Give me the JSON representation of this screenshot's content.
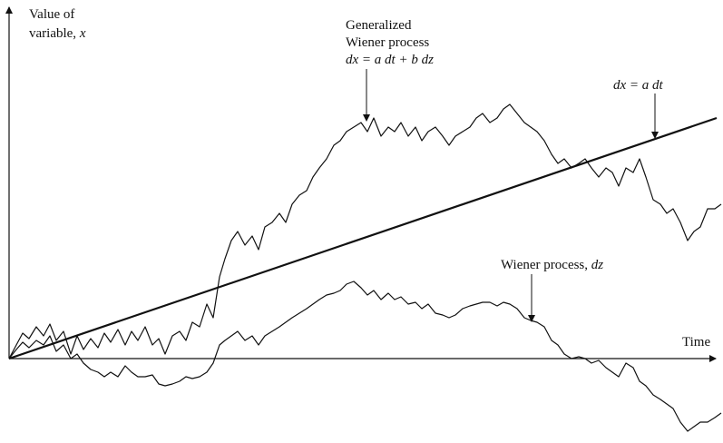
{
  "chart_data": {
    "type": "line",
    "title": "",
    "ylabel_line1": "Value of",
    "ylabel_line2_prefix": "variable, ",
    "ylabel_var": "x",
    "xlabel": "Time",
    "grid": false,
    "annotations": {
      "generalized": {
        "line1": "Generalized",
        "line2": "Wiener process",
        "equation": "dx = a dt + b dz"
      },
      "drift": {
        "equation": "dx = a dt"
      },
      "wiener": {
        "text": "Wiener process, ",
        "var": "dz"
      }
    },
    "series": [
      {
        "key": "drift",
        "style": "thick",
        "points": [
          [
            0,
            0
          ],
          [
            780,
            -265
          ]
        ]
      },
      {
        "key": "generalized",
        "style": "thin",
        "points": [
          [
            0,
            0
          ],
          [
            8,
            -15
          ],
          [
            15,
            -28
          ],
          [
            22,
            -22
          ],
          [
            30,
            -35
          ],
          [
            38,
            -25
          ],
          [
            45,
            -38
          ],
          [
            52,
            -20
          ],
          [
            60,
            -30
          ],
          [
            68,
            -5
          ],
          [
            75,
            -25
          ],
          [
            82,
            -10
          ],
          [
            90,
            -22
          ],
          [
            98,
            -12
          ],
          [
            105,
            -28
          ],
          [
            112,
            -18
          ],
          [
            120,
            -32
          ],
          [
            128,
            -15
          ],
          [
            135,
            -30
          ],
          [
            142,
            -20
          ],
          [
            150,
            -35
          ],
          [
            158,
            -15
          ],
          [
            165,
            -22
          ],
          [
            172,
            -5
          ],
          [
            180,
            -25
          ],
          [
            188,
            -30
          ],
          [
            195,
            -20
          ],
          [
            202,
            -40
          ],
          [
            210,
            -35
          ],
          [
            218,
            -60
          ],
          [
            225,
            -45
          ],
          [
            232,
            -90
          ],
          [
            238,
            -110
          ],
          [
            245,
            -130
          ],
          [
            252,
            -140
          ],
          [
            260,
            -125
          ],
          [
            268,
            -135
          ],
          [
            275,
            -120
          ],
          [
            282,
            -145
          ],
          [
            290,
            -150
          ],
          [
            298,
            -160
          ],
          [
            305,
            -150
          ],
          [
            312,
            -170
          ],
          [
            320,
            -180
          ],
          [
            328,
            -185
          ],
          [
            335,
            -200
          ],
          [
            342,
            -210
          ],
          [
            350,
            -220
          ],
          [
            358,
            -235
          ],
          [
            365,
            -240
          ],
          [
            372,
            -250
          ],
          [
            380,
            -255
          ],
          [
            388,
            -260
          ],
          [
            395,
            -250
          ],
          [
            402,
            -265
          ],
          [
            410,
            -245
          ],
          [
            418,
            -255
          ],
          [
            425,
            -250
          ],
          [
            432,
            -260
          ],
          [
            440,
            -245
          ],
          [
            448,
            -255
          ],
          [
            455,
            -240
          ],
          [
            462,
            -250
          ],
          [
            470,
            -255
          ],
          [
            478,
            -245
          ],
          [
            485,
            -235
          ],
          [
            492,
            -245
          ],
          [
            500,
            -250
          ],
          [
            508,
            -255
          ],
          [
            515,
            -265
          ],
          [
            522,
            -270
          ],
          [
            530,
            -260
          ],
          [
            538,
            -265
          ],
          [
            545,
            -275
          ],
          [
            552,
            -280
          ],
          [
            560,
            -270
          ],
          [
            568,
            -260
          ],
          [
            575,
            -255
          ],
          [
            582,
            -250
          ],
          [
            590,
            -240
          ],
          [
            598,
            -225
          ],
          [
            605,
            -215
          ],
          [
            612,
            -220
          ],
          [
            620,
            -210
          ],
          [
            628,
            -215
          ],
          [
            635,
            -220
          ],
          [
            642,
            -210
          ],
          [
            650,
            -200
          ],
          [
            658,
            -210
          ],
          [
            665,
            -205
          ],
          [
            672,
            -190
          ],
          [
            680,
            -210
          ],
          [
            688,
            -205
          ],
          [
            695,
            -220
          ],
          [
            702,
            -200
          ],
          [
            710,
            -175
          ],
          [
            718,
            -170
          ],
          [
            725,
            -160
          ],
          [
            732,
            -165
          ],
          [
            740,
            -150
          ],
          [
            748,
            -130
          ],
          [
            755,
            -140
          ],
          [
            762,
            -145
          ],
          [
            770,
            -165
          ],
          [
            778,
            -165
          ],
          [
            785,
            -170
          ]
        ]
      },
      {
        "key": "wiener",
        "style": "thin",
        "points": [
          [
            0,
            0
          ],
          [
            8,
            -10
          ],
          [
            15,
            -18
          ],
          [
            22,
            -12
          ],
          [
            30,
            -20
          ],
          [
            38,
            -15
          ],
          [
            45,
            -25
          ],
          [
            52,
            -8
          ],
          [
            60,
            -15
          ],
          [
            68,
            0
          ],
          [
            75,
            -5
          ],
          [
            82,
            5
          ],
          [
            90,
            12
          ],
          [
            98,
            15
          ],
          [
            105,
            20
          ],
          [
            112,
            15
          ],
          [
            120,
            20
          ],
          [
            128,
            8
          ],
          [
            135,
            15
          ],
          [
            142,
            20
          ],
          [
            150,
            20
          ],
          [
            158,
            18
          ],
          [
            165,
            28
          ],
          [
            172,
            30
          ],
          [
            180,
            28
          ],
          [
            188,
            25
          ],
          [
            195,
            20
          ],
          [
            202,
            22
          ],
          [
            210,
            20
          ],
          [
            218,
            15
          ],
          [
            225,
            5
          ],
          [
            232,
            -15
          ],
          [
            238,
            -20
          ],
          [
            245,
            -25
          ],
          [
            252,
            -30
          ],
          [
            260,
            -20
          ],
          [
            268,
            -25
          ],
          [
            275,
            -15
          ],
          [
            282,
            -25
          ],
          [
            290,
            -30
          ],
          [
            298,
            -35
          ],
          [
            305,
            -40
          ],
          [
            312,
            -45
          ],
          [
            320,
            -50
          ],
          [
            328,
            -55
          ],
          [
            335,
            -60
          ],
          [
            342,
            -65
          ],
          [
            350,
            -70
          ],
          [
            358,
            -72
          ],
          [
            365,
            -75
          ],
          [
            372,
            -82
          ],
          [
            380,
            -85
          ],
          [
            388,
            -78
          ],
          [
            395,
            -70
          ],
          [
            402,
            -75
          ],
          [
            410,
            -65
          ],
          [
            418,
            -72
          ],
          [
            425,
            -65
          ],
          [
            432,
            -68
          ],
          [
            440,
            -60
          ],
          [
            448,
            -62
          ],
          [
            455,
            -55
          ],
          [
            462,
            -60
          ],
          [
            470,
            -50
          ],
          [
            478,
            -48
          ],
          [
            485,
            -45
          ],
          [
            492,
            -48
          ],
          [
            500,
            -55
          ],
          [
            508,
            -58
          ],
          [
            515,
            -60
          ],
          [
            522,
            -62
          ],
          [
            530,
            -62
          ],
          [
            538,
            -58
          ],
          [
            545,
            -62
          ],
          [
            552,
            -60
          ],
          [
            560,
            -55
          ],
          [
            568,
            -45
          ],
          [
            575,
            -42
          ],
          [
            582,
            -40
          ],
          [
            590,
            -35
          ],
          [
            598,
            -20
          ],
          [
            605,
            -15
          ],
          [
            612,
            -5
          ],
          [
            620,
            0
          ],
          [
            628,
            -2
          ],
          [
            635,
            0
          ],
          [
            642,
            5
          ],
          [
            650,
            2
          ],
          [
            658,
            10
          ],
          [
            665,
            15
          ],
          [
            672,
            20
          ],
          [
            680,
            5
          ],
          [
            688,
            10
          ],
          [
            695,
            25
          ],
          [
            702,
            30
          ],
          [
            710,
            40
          ],
          [
            718,
            45
          ],
          [
            725,
            50
          ],
          [
            732,
            55
          ],
          [
            740,
            70
          ],
          [
            748,
            80
          ],
          [
            755,
            75
          ],
          [
            762,
            70
          ],
          [
            770,
            70
          ],
          [
            778,
            65
          ],
          [
            785,
            60
          ]
        ]
      }
    ]
  }
}
